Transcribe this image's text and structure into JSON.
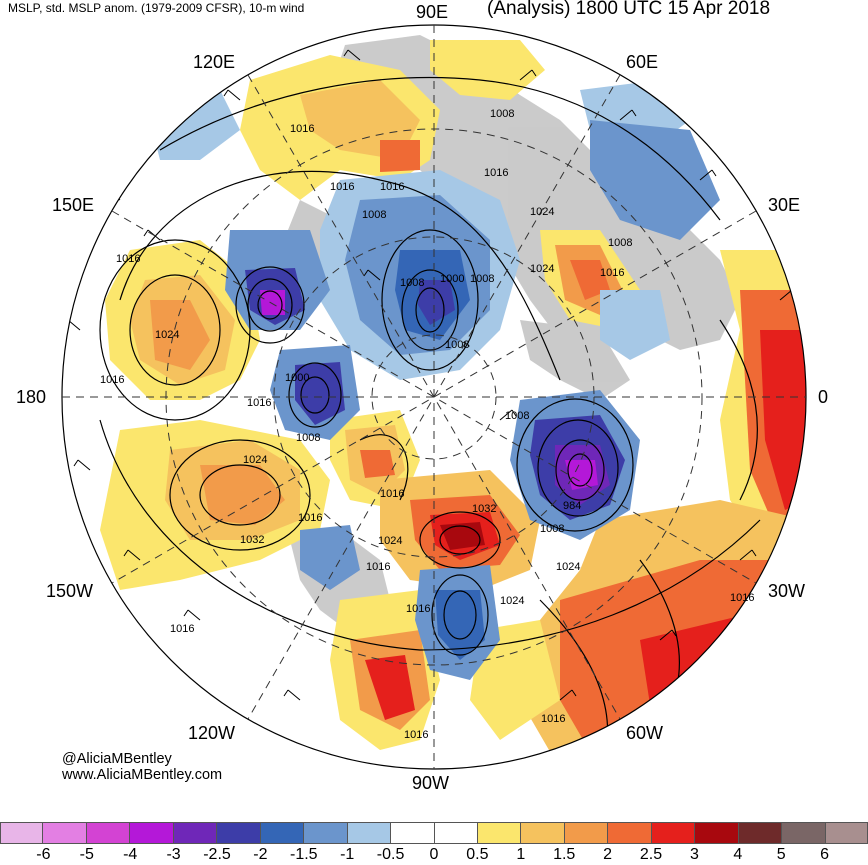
{
  "header": {
    "left_title": "MSLP, std. MSLP anom. (1979-2009 CFSR), 10-m wind",
    "right_title": "(Analysis) 1800 UTC 15 Apr 2018"
  },
  "longitude_labels": {
    "top": "90E",
    "upper_left": "120E",
    "upper_right": "60E",
    "left_upper": "150E",
    "right_upper": "30E",
    "left": "180",
    "right": "0",
    "left_lower": "150W",
    "right_lower": "30W",
    "lower_left": "120W",
    "lower_right": "60W",
    "bottom": "90W"
  },
  "isobar_labels": [
    "1016",
    "1016",
    "1008",
    "1016",
    "1008",
    "1024",
    "1016",
    "1016",
    "1008",
    "1024",
    "1016",
    "1000",
    "1008",
    "1008",
    "1016",
    "1000",
    "1016",
    "1008",
    "1024",
    "1008",
    "1016",
    "1024",
    "1008",
    "1032",
    "1032",
    "984",
    "1008",
    "1016",
    "1024",
    "1024",
    "1016",
    "1016",
    "1024",
    "1016",
    "1016",
    "1016",
    "1016"
  ],
  "credit": {
    "handle": "@AliciaMBentley",
    "site": "www.AliciaMBentley.com"
  },
  "colorbar": {
    "colors": [
      "#e8b5e8",
      "#e37fe3",
      "#d343d3",
      "#b418d8",
      "#6f27b8",
      "#3d3da8",
      "#3466b6",
      "#6b95cc",
      "#a6c8e6",
      "#ffffff",
      "#ffffff",
      "#fbe66d",
      "#f5c25e",
      "#f29b4a",
      "#ef6a35",
      "#e5201c",
      "#a8080e",
      "#6e2a2a",
      "#7a6666",
      "#a88f8f"
    ],
    "tick_labels": [
      "-6",
      "-5",
      "-4",
      "-3",
      "-2.5",
      "-2",
      "-1.5",
      "-1",
      "-0.5",
      "0",
      "0.5",
      "1",
      "1.5",
      "2",
      "2.5",
      "3",
      "4",
      "5",
      "6"
    ]
  }
}
